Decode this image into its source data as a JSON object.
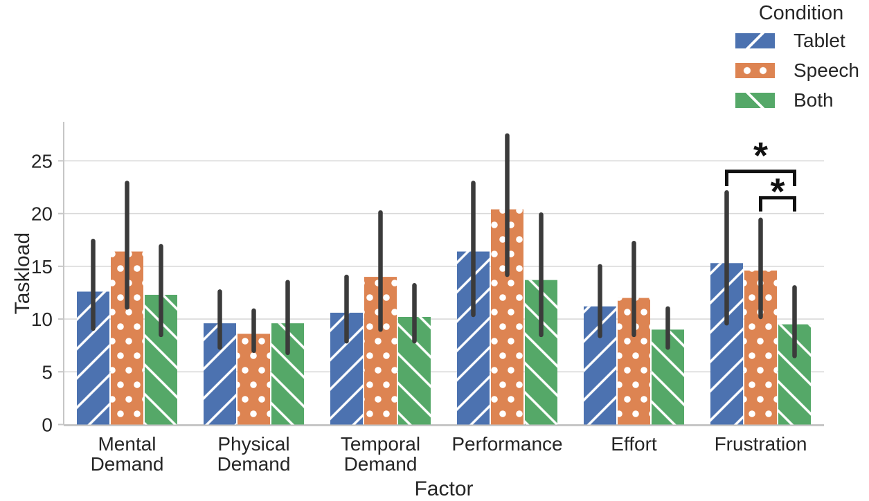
{
  "figure": {
    "background": "#ffffff",
    "text_color": "#262626",
    "grid_color": "#d9d9d9",
    "spine_color": "#c6c6c6",
    "errorbar_color": "#3b3b3b",
    "annotation_color": "#111111",
    "hatch_color": "#ffffff"
  },
  "legend": {
    "title": "Condition",
    "items": [
      {
        "label": "Tablet",
        "color": "#4C72B0",
        "hatch": "slash"
      },
      {
        "label": "Speech",
        "color": "#DD8452",
        "hatch": "dots"
      },
      {
        "label": "Both",
        "color": "#55A868",
        "hatch": "backslash"
      }
    ]
  },
  "chart_data": {
    "type": "bar",
    "title": "",
    "xlabel": "Factor",
    "ylabel": "Taskload",
    "categories": [
      "Mental Demand",
      "Physical Demand",
      "Temporal Demand",
      "Performance",
      "Effort",
      "Frustration"
    ],
    "yticks": [
      0,
      5,
      10,
      15,
      20,
      25
    ],
    "ylim": [
      0,
      28.7
    ],
    "grid": true,
    "legend_position": "upper right outside",
    "series": [
      {
        "name": "Tablet",
        "color": "#4C72B0",
        "hatch": "slash",
        "values": [
          12.6,
          9.6,
          10.6,
          16.4,
          11.2,
          15.3
        ],
        "error_low": [
          9.1,
          7.3,
          7.9,
          10.4,
          8.4,
          9.6
        ],
        "error_high": [
          17.4,
          12.6,
          14.0,
          22.9,
          15.0,
          22.0
        ]
      },
      {
        "name": "Speech",
        "color": "#DD8452",
        "hatch": "dots",
        "values": [
          16.4,
          8.6,
          14.0,
          20.4,
          12.0,
          14.6
        ],
        "error_low": [
          11.1,
          7.0,
          9.0,
          14.2,
          8.5,
          10.2
        ],
        "error_high": [
          22.9,
          10.8,
          20.1,
          27.4,
          17.2,
          19.4
        ]
      },
      {
        "name": "Both",
        "color": "#55A868",
        "hatch": "backslash",
        "values": [
          12.3,
          9.6,
          10.2,
          13.7,
          9.0,
          9.5
        ],
        "error_low": [
          8.5,
          6.8,
          7.9,
          8.5,
          7.3,
          6.5
        ],
        "error_high": [
          16.9,
          13.5,
          13.2,
          19.9,
          11.0,
          13.0
        ]
      }
    ],
    "significance": [
      {
        "category": "Frustration",
        "between": [
          "Tablet",
          "Both"
        ],
        "label": "*",
        "bar_y": 24.0,
        "tick_y": 22.6,
        "label_y": 24.3
      },
      {
        "category": "Frustration",
        "between": [
          "Speech",
          "Both"
        ],
        "label": "*",
        "bar_y": 21.5,
        "tick_y": 20.2,
        "label_y": 20.9
      }
    ]
  }
}
